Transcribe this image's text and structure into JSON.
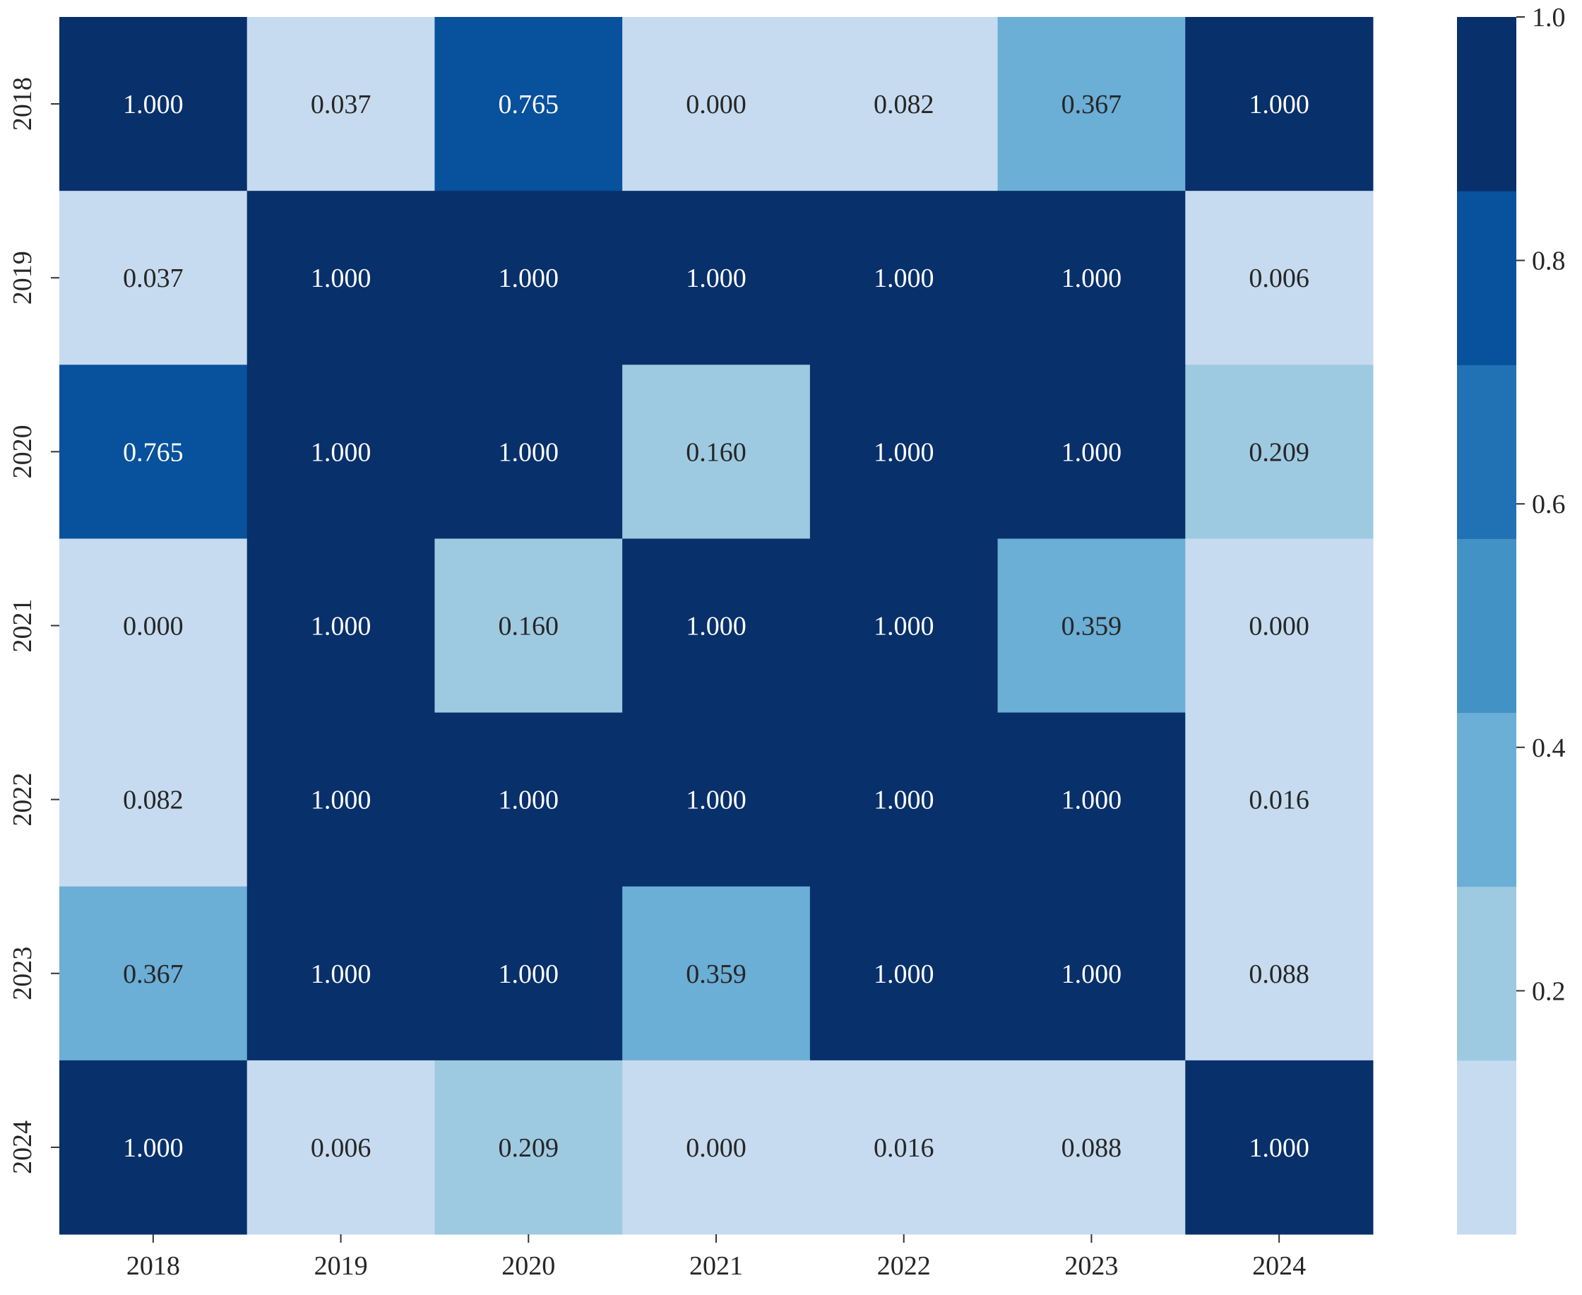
{
  "chart_data": {
    "type": "heatmap",
    "title": "",
    "xlabel": "",
    "ylabel": "",
    "x_categories": [
      "2018",
      "2019",
      "2020",
      "2021",
      "2022",
      "2023",
      "2024"
    ],
    "y_categories": [
      "2018",
      "2019",
      "2020",
      "2021",
      "2022",
      "2023",
      "2024"
    ],
    "values": [
      [
        1.0,
        0.037,
        0.765,
        0.0,
        0.082,
        0.367,
        1.0
      ],
      [
        0.037,
        1.0,
        1.0,
        1.0,
        1.0,
        1.0,
        0.006
      ],
      [
        0.765,
        1.0,
        1.0,
        0.16,
        1.0,
        1.0,
        0.209
      ],
      [
        0.0,
        1.0,
        0.16,
        1.0,
        1.0,
        0.359,
        0.0
      ],
      [
        0.082,
        1.0,
        1.0,
        1.0,
        1.0,
        1.0,
        0.016
      ],
      [
        0.367,
        1.0,
        1.0,
        0.359,
        1.0,
        1.0,
        0.088
      ],
      [
        1.0,
        0.006,
        0.209,
        0.0,
        0.016,
        0.088,
        1.0
      ]
    ],
    "cell_labels": [
      [
        "1.000",
        "0.037",
        "0.765",
        "0.000",
        "0.082",
        "0.367",
        "1.000"
      ],
      [
        "0.037",
        "1.000",
        "1.000",
        "1.000",
        "1.000",
        "1.000",
        "0.006"
      ],
      [
        "0.765",
        "1.000",
        "1.000",
        "0.160",
        "1.000",
        "1.000",
        "0.209"
      ],
      [
        "0.000",
        "1.000",
        "0.160",
        "1.000",
        "1.000",
        "0.359",
        "0.000"
      ],
      [
        "0.082",
        "1.000",
        "1.000",
        "1.000",
        "1.000",
        "1.000",
        "0.016"
      ],
      [
        "0.367",
        "1.000",
        "1.000",
        "0.359",
        "1.000",
        "1.000",
        "0.088"
      ],
      [
        "1.000",
        "0.006",
        "0.209",
        "0.000",
        "0.016",
        "0.088",
        "1.000"
      ]
    ],
    "colormap": "Blues (7 discrete levels)",
    "vmin": 0.0,
    "vmax": 1.0,
    "colorbar": {
      "ticks": [
        0.2,
        0.4,
        0.6,
        0.8,
        1.0
      ],
      "tick_labels": [
        "0.2",
        "0.4",
        "0.6",
        "0.8",
        "1.0"
      ],
      "colors": [
        "#c6dbef",
        "#9ecae1",
        "#6baed6",
        "#4292c6",
        "#2171b5",
        "#08519c",
        "#08306b"
      ]
    },
    "grid": false,
    "legend": "colorbar-right"
  }
}
